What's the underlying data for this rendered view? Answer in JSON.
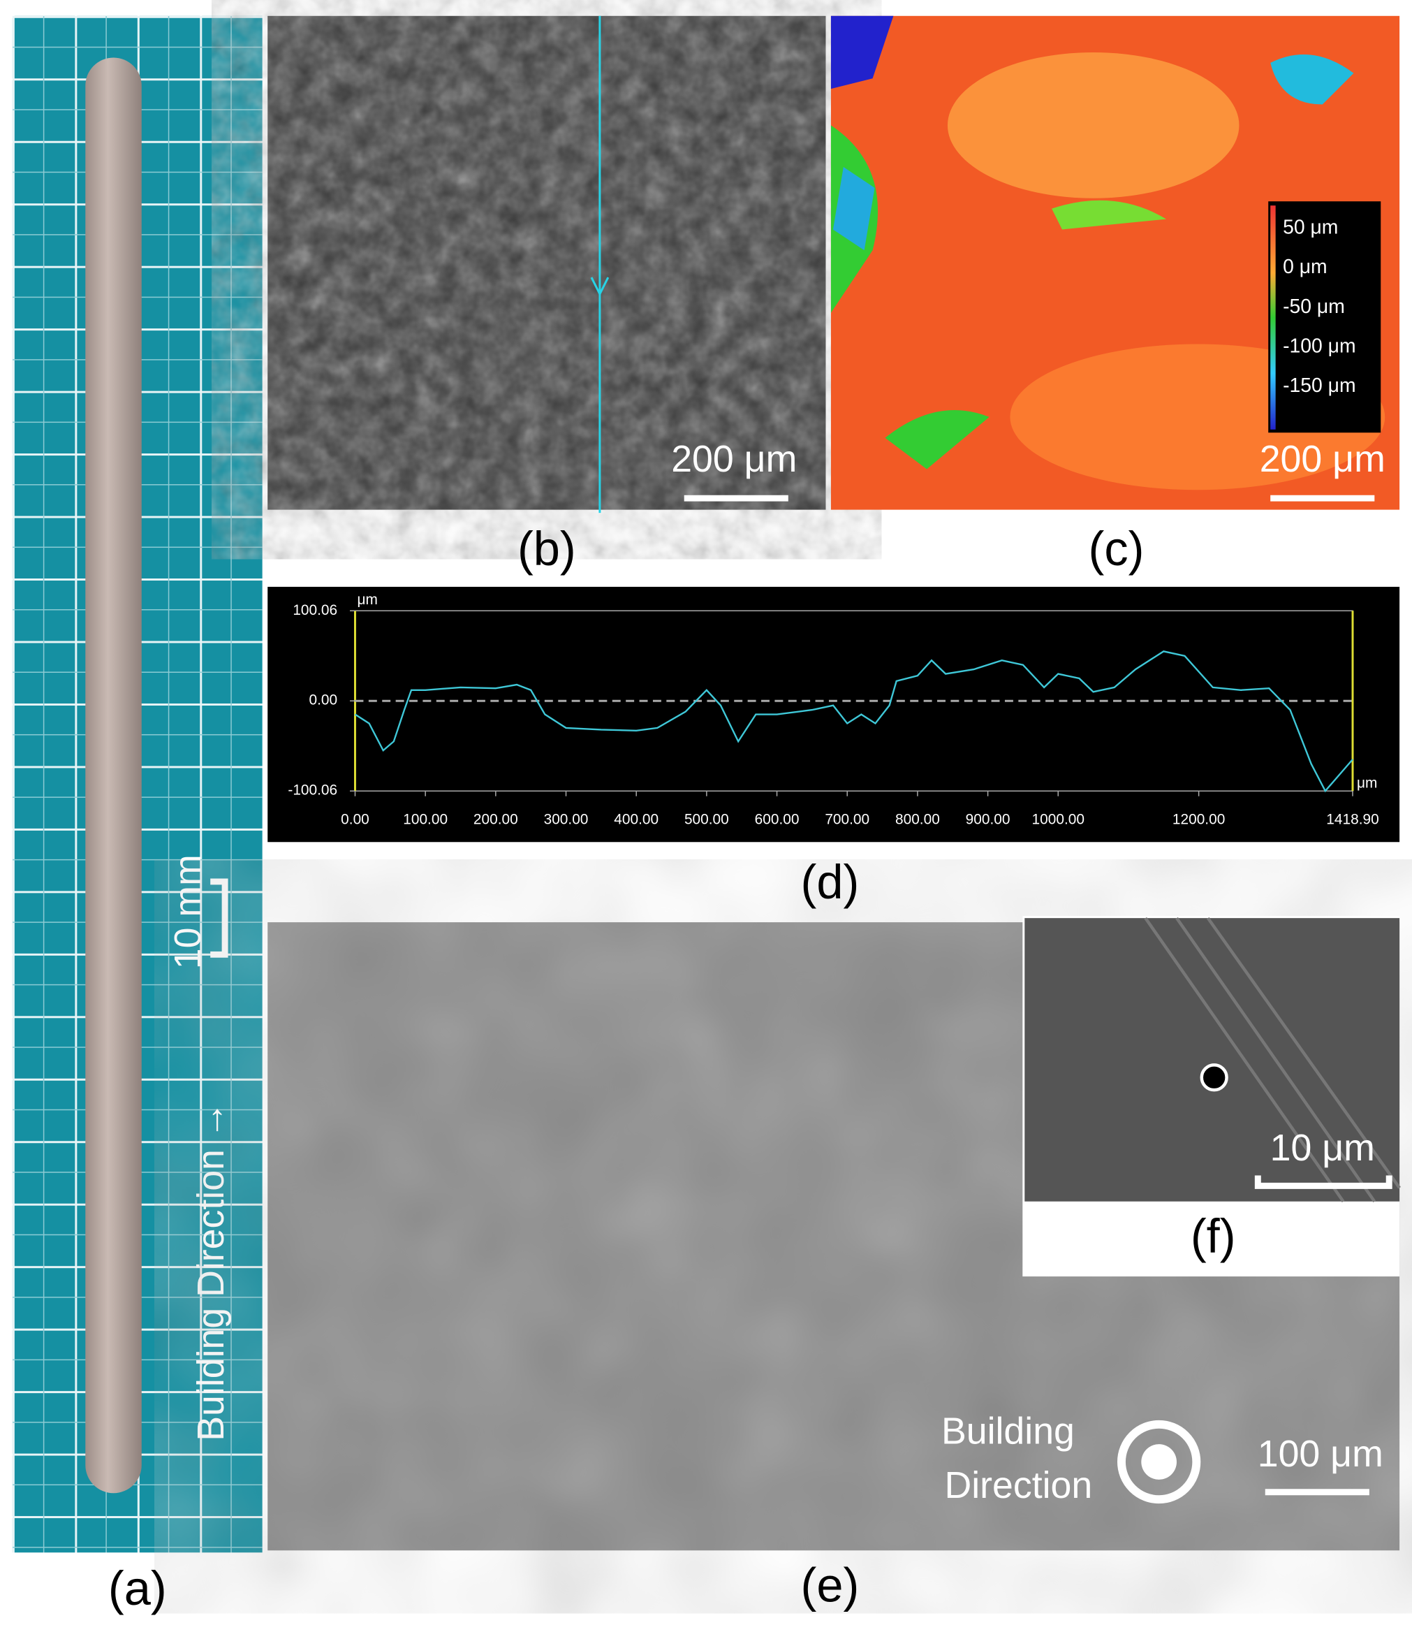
{
  "panels": {
    "a": {
      "label": "(a)",
      "scale_bar": "10 mm",
      "direction": "Building Direction →"
    },
    "b": {
      "label": "(b)",
      "scale_bar": "200 μm"
    },
    "c": {
      "label": "(c)",
      "scale_bar": "200 μm",
      "colorbar": [
        "50 μm",
        "0 μm",
        "-50 μm",
        "-100 μm",
        "-150 μm"
      ]
    },
    "d": {
      "label": "(d)",
      "y_unit": "μm",
      "x_unit": "μm",
      "ylim": [
        -100.06,
        100.06
      ],
      "yticks": [
        100.06,
        {
          "value": 0,
          "label": "0.00"
        },
        -100.06
      ],
      "xlim": [
        0,
        1418.9
      ],
      "xticks": [
        {
          "value": 0,
          "label": "0.00"
        },
        {
          "value": 100,
          "label": "100.00"
        },
        {
          "value": 200,
          "label": "200.00"
        },
        {
          "value": 300,
          "label": "300.00"
        },
        {
          "value": 400,
          "label": "400.00"
        },
        {
          "value": 500,
          "label": "500.00"
        },
        {
          "value": 600,
          "label": "600.00"
        },
        {
          "value": 700,
          "label": "700.00"
        },
        {
          "value": 800,
          "label": "800.00"
        },
        {
          "value": 900,
          "label": "900.00"
        },
        {
          "value": 1000,
          "label": "1000.00"
        },
        {
          "value": 1200,
          "label": "1200.00"
        },
        {
          "value": 1418.9,
          "label": "1418.90"
        }
      ],
      "color": "#3fc8d8",
      "x": [
        0,
        20,
        40,
        55,
        70,
        80,
        100,
        150,
        200,
        230,
        250,
        270,
        300,
        350,
        400,
        430,
        470,
        500,
        520,
        545,
        570,
        600,
        650,
        680,
        700,
        720,
        740,
        760,
        770,
        800,
        820,
        840,
        880,
        920,
        950,
        980,
        1000,
        1030,
        1050,
        1080,
        1110,
        1150,
        1180,
        1220,
        1260,
        1300,
        1330,
        1360,
        1380,
        1418.9
      ],
      "values": [
        -15,
        -25,
        -55,
        -45,
        -10,
        12,
        12,
        15,
        14,
        18,
        12,
        -15,
        -30,
        -32,
        -33,
        -30,
        -12,
        12,
        -5,
        -45,
        -15,
        -15,
        -10,
        -5,
        -25,
        -15,
        -25,
        -5,
        22,
        28,
        45,
        30,
        35,
        45,
        40,
        15,
        30,
        25,
        10,
        15,
        35,
        55,
        50,
        15,
        12,
        14,
        -10,
        -70,
        -100,
        -65
      ]
    },
    "e": {
      "label": "(e)",
      "scale_bar": "100 μm",
      "direction": [
        "Building",
        "Direction"
      ]
    },
    "f": {
      "label": "(f)",
      "scale_bar": "10 μm"
    }
  }
}
